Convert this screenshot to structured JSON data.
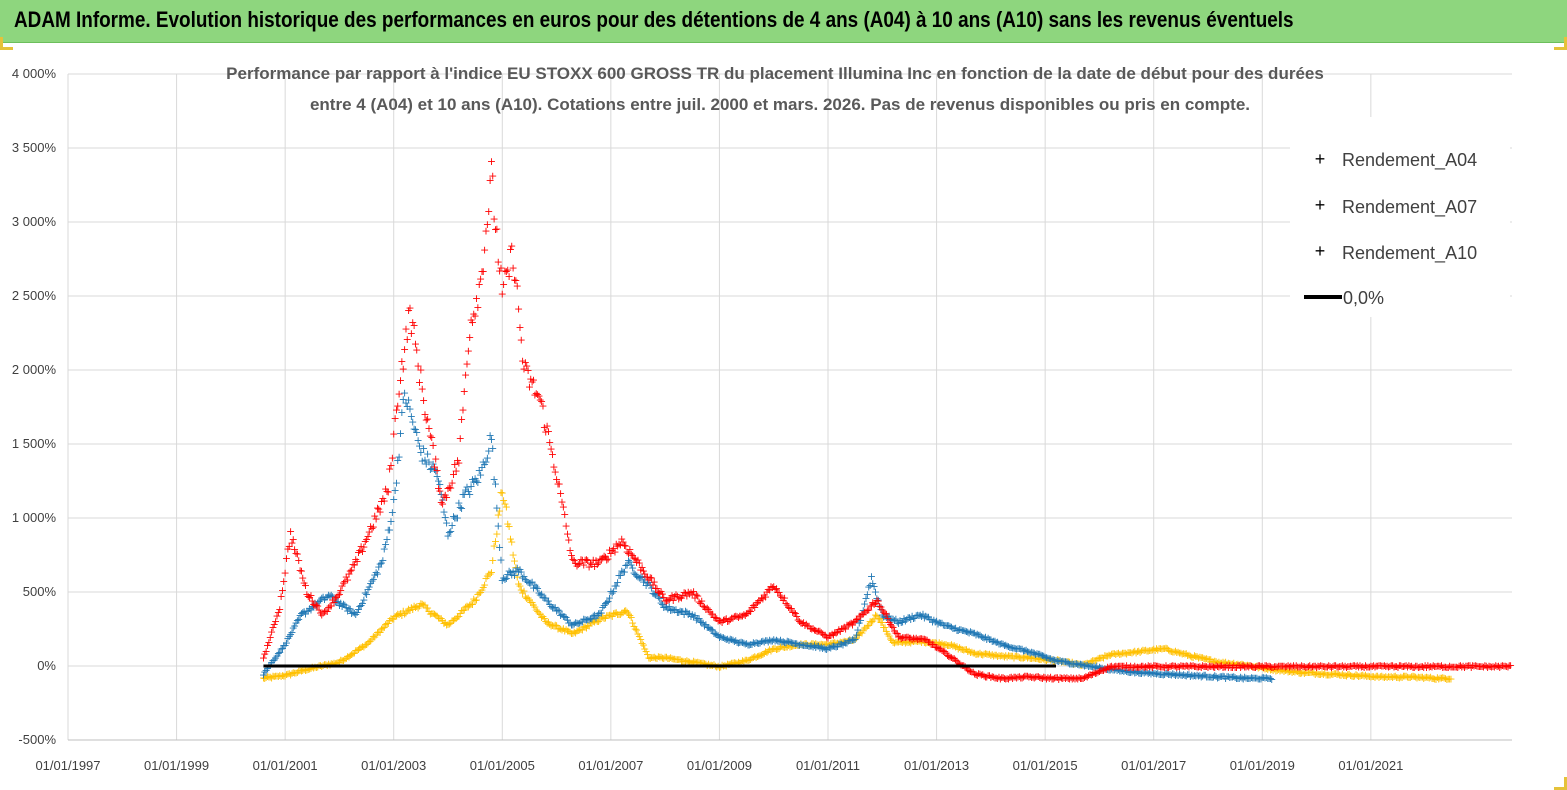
{
  "banner": {
    "title": "ADAM Informe. Evolution historique des performances en euros pour des détentions de 4 ans (A04) à 10 ans (A10) sans les revenus éventuels"
  },
  "colors": {
    "banner_bg": "#8ed67e",
    "a04": "#ffc000",
    "a07": "#1f77b4",
    "a10": "#ff0000",
    "zero": "#000000",
    "grid": "#d9d9d9"
  },
  "chart_data": {
    "type": "scatter",
    "title_lines": [
      "Performance par rapport à l'indice EU STOXX 600 GROSS TR  du placement Illumina Inc en fonction de la date de début pour des durées",
      "entre 4 (A04) et 10 ans (A10). Cotations entre juil. 2000 et mars. 2026. Pas de revenus disponibles ou pris en compte."
    ],
    "xlabel": "",
    "ylabel": "",
    "xlim": [
      1997.0,
      2023.6
    ],
    "ylim": [
      -500,
      4000
    ],
    "y_ticks": [
      -500,
      0,
      500,
      1000,
      1500,
      2000,
      2500,
      3000,
      3500,
      4000
    ],
    "y_tick_labels": [
      "-500%",
      "0%",
      "500%",
      "1 000%",
      "1 500%",
      "2 000%",
      "2 500%",
      "3 000%",
      "3 500%",
      "4 000%"
    ],
    "x_ticks": [
      1997,
      1999,
      2001,
      2003,
      2005,
      2007,
      2009,
      2011,
      2013,
      2015,
      2017,
      2019,
      2021
    ],
    "x_tick_labels": [
      "01/01/1997",
      "01/01/1999",
      "01/01/2001",
      "01/01/2003",
      "01/01/2005",
      "01/01/2007",
      "01/01/2009",
      "01/01/2011",
      "01/01/2013",
      "01/01/2015",
      "01/01/2017",
      "01/01/2019",
      "01/01/2021"
    ],
    "legend_position": "top-right",
    "legend": [
      "Rendement_A04",
      "Rendement_A07",
      "Rendement_A10",
      "0,0%"
    ],
    "series": [
      {
        "name": "Rendement_A04",
        "color": "#ffc000",
        "marker": "+",
        "x": [
          2000.6,
          2001.0,
          2001.5,
          2002.0,
          2002.5,
          2003.0,
          2003.5,
          2004.0,
          2004.5,
          2004.8,
          2005.0,
          2005.3,
          2005.8,
          2006.3,
          2006.8,
          2007.3,
          2007.7,
          2008.0,
          2008.5,
          2009.0,
          2009.5,
          2010.0,
          2010.5,
          2011.0,
          2011.5,
          2011.9,
          2012.2,
          2012.7,
          2013.2,
          2013.7,
          2014.2,
          2014.7,
          2015.2,
          2015.7,
          2016.2,
          2016.7,
          2017.2,
          2017.7,
          2018.2,
          2018.7,
          2019.2,
          2019.7,
          2020.2,
          2020.7,
          2021.2,
          2021.7,
          2022.2,
          2022.5
        ],
        "y": [
          -80,
          -60,
          -10,
          30,
          150,
          330,
          420,
          280,
          450,
          650,
          1200,
          550,
          300,
          220,
          320,
          380,
          60,
          60,
          30,
          0,
          40,
          120,
          150,
          150,
          180,
          350,
          160,
          170,
          150,
          90,
          70,
          60,
          40,
          10,
          80,
          100,
          120,
          70,
          30,
          10,
          -20,
          -40,
          -50,
          -60,
          -70,
          -70,
          -80,
          -80
        ]
      },
      {
        "name": "Rendement_A07",
        "color": "#1f77b4",
        "marker": "+",
        "x": [
          2000.6,
          2001.0,
          2001.3,
          2001.8,
          2002.3,
          2002.8,
          2003.0,
          2003.2,
          2003.5,
          2003.8,
          2004.0,
          2004.3,
          2004.6,
          2004.8,
          2005.0,
          2005.3,
          2005.8,
          2006.3,
          2006.8,
          2007.3,
          2007.7,
          2008.0,
          2008.5,
          2009.0,
          2009.5,
          2010.0,
          2010.5,
          2011.0,
          2011.5,
          2011.8,
          2012.0,
          2012.3,
          2012.7,
          2013.2,
          2013.7,
          2014.2,
          2014.7,
          2015.2,
          2015.7,
          2016.2,
          2016.7,
          2017.2,
          2017.7,
          2018.2,
          2018.7,
          2019.2
        ],
        "y": [
          -50,
          150,
          350,
          480,
          350,
          720,
          1100,
          1850,
          1450,
          1300,
          900,
          1150,
          1300,
          1550,
          600,
          650,
          450,
          280,
          350,
          700,
          550,
          400,
          350,
          200,
          150,
          180,
          150,
          120,
          180,
          600,
          350,
          300,
          350,
          270,
          220,
          150,
          100,
          40,
          10,
          -20,
          -40,
          -50,
          -60,
          -70,
          -80,
          -80
        ]
      },
      {
        "name": "Rendement_A10",
        "color": "#ff0000",
        "marker": "+",
        "x": [
          2000.6,
          2000.9,
          2001.1,
          2001.4,
          2001.7,
          2002.0,
          2002.3,
          2002.6,
          2002.9,
          2003.1,
          2003.3,
          2003.6,
          2003.9,
          2004.2,
          2004.4,
          2004.6,
          2004.8,
          2005.0,
          2005.2,
          2005.4,
          2005.7,
          2006.0,
          2006.3,
          2006.8,
          2007.2,
          2007.6,
          2008.0,
          2008.5,
          2009.0,
          2009.5,
          2010.0,
          2010.5,
          2011.0,
          2011.5,
          2011.9,
          2012.3,
          2012.8,
          2013.2,
          2013.7,
          2014.2,
          2014.7,
          2015.2,
          2015.7,
          2016.2,
          2016.7,
          2017.2,
          2017.7,
          2018.2,
          2018.7,
          2019.2,
          2019.7,
          2020.2,
          2020.7,
          2021.2,
          2021.7,
          2022.2,
          2022.7,
          2023.2,
          2023.6
        ],
        "y": [
          50,
          400,
          900,
          500,
          350,
          500,
          700,
          950,
          1200,
          1900,
          2400,
          1700,
          1100,
          1400,
          2300,
          2600,
          3300,
          2500,
          2800,
          2000,
          1800,
          1300,
          700,
          700,
          850,
          650,
          450,
          500,
          300,
          350,
          550,
          300,
          200,
          300,
          450,
          200,
          180,
          80,
          -50,
          -80,
          -70,
          -80,
          -80,
          0,
          0,
          0,
          0,
          0,
          0,
          0,
          0,
          0,
          0,
          0,
          0,
          0,
          0,
          0,
          0
        ]
      }
    ],
    "reference_line": {
      "name": "0,0%",
      "y": 0,
      "x_range": [
        2000.6,
        2015.2
      ],
      "color": "#000000"
    }
  }
}
